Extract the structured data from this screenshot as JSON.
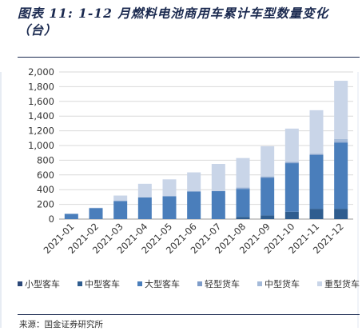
{
  "figure": {
    "title": "图表 11: 1-12 月燃料电池商用车累计车型数量变化（台）",
    "source": "来源：国金证券研究所"
  },
  "chart_data": {
    "type": "bar",
    "stacked": true,
    "categories": [
      "2021-01",
      "2021-02",
      "2021-03",
      "2021-04",
      "2021-05",
      "2021-06",
      "2021-07",
      "2021-08",
      "2021-09",
      "2021-10",
      "2021-11",
      "2021-12"
    ],
    "ylim": [
      0,
      2000
    ],
    "yticks": [
      "0",
      "200",
      "400",
      "600",
      "800",
      "1,000",
      "1,200",
      "1,400",
      "1,600",
      "1,800",
      "2,000"
    ],
    "grid": true,
    "legend_position": "bottom",
    "series": [
      {
        "name": "小型客车",
        "color": "#2b4778",
        "values": [
          0,
          0,
          0,
          0,
          0,
          0,
          0,
          0,
          0,
          0,
          0,
          0
        ]
      },
      {
        "name": "中型客车",
        "color": "#2f5d8f",
        "values": [
          0,
          0,
          0,
          0,
          0,
          0,
          0,
          30,
          50,
          100,
          140,
          140
        ]
      },
      {
        "name": "大型客车",
        "color": "#4a7ebb",
        "values": [
          70,
          150,
          245,
          295,
          310,
          375,
          380,
          380,
          510,
          660,
          730,
          900
        ]
      },
      {
        "name": "轻型货车",
        "color": "#7e9cc9",
        "values": [
          0,
          0,
          0,
          0,
          0,
          0,
          0,
          10,
          10,
          10,
          10,
          10
        ]
      },
      {
        "name": "中型货车",
        "color": "#a4bad9",
        "values": [
          0,
          0,
          0,
          0,
          0,
          0,
          0,
          10,
          10,
          10,
          10,
          40
        ]
      },
      {
        "name": "重型货车",
        "color": "#c9d5e8",
        "values": [
          5,
          5,
          75,
          185,
          230,
          260,
          370,
          400,
          410,
          450,
          590,
          790
        ]
      }
    ]
  }
}
